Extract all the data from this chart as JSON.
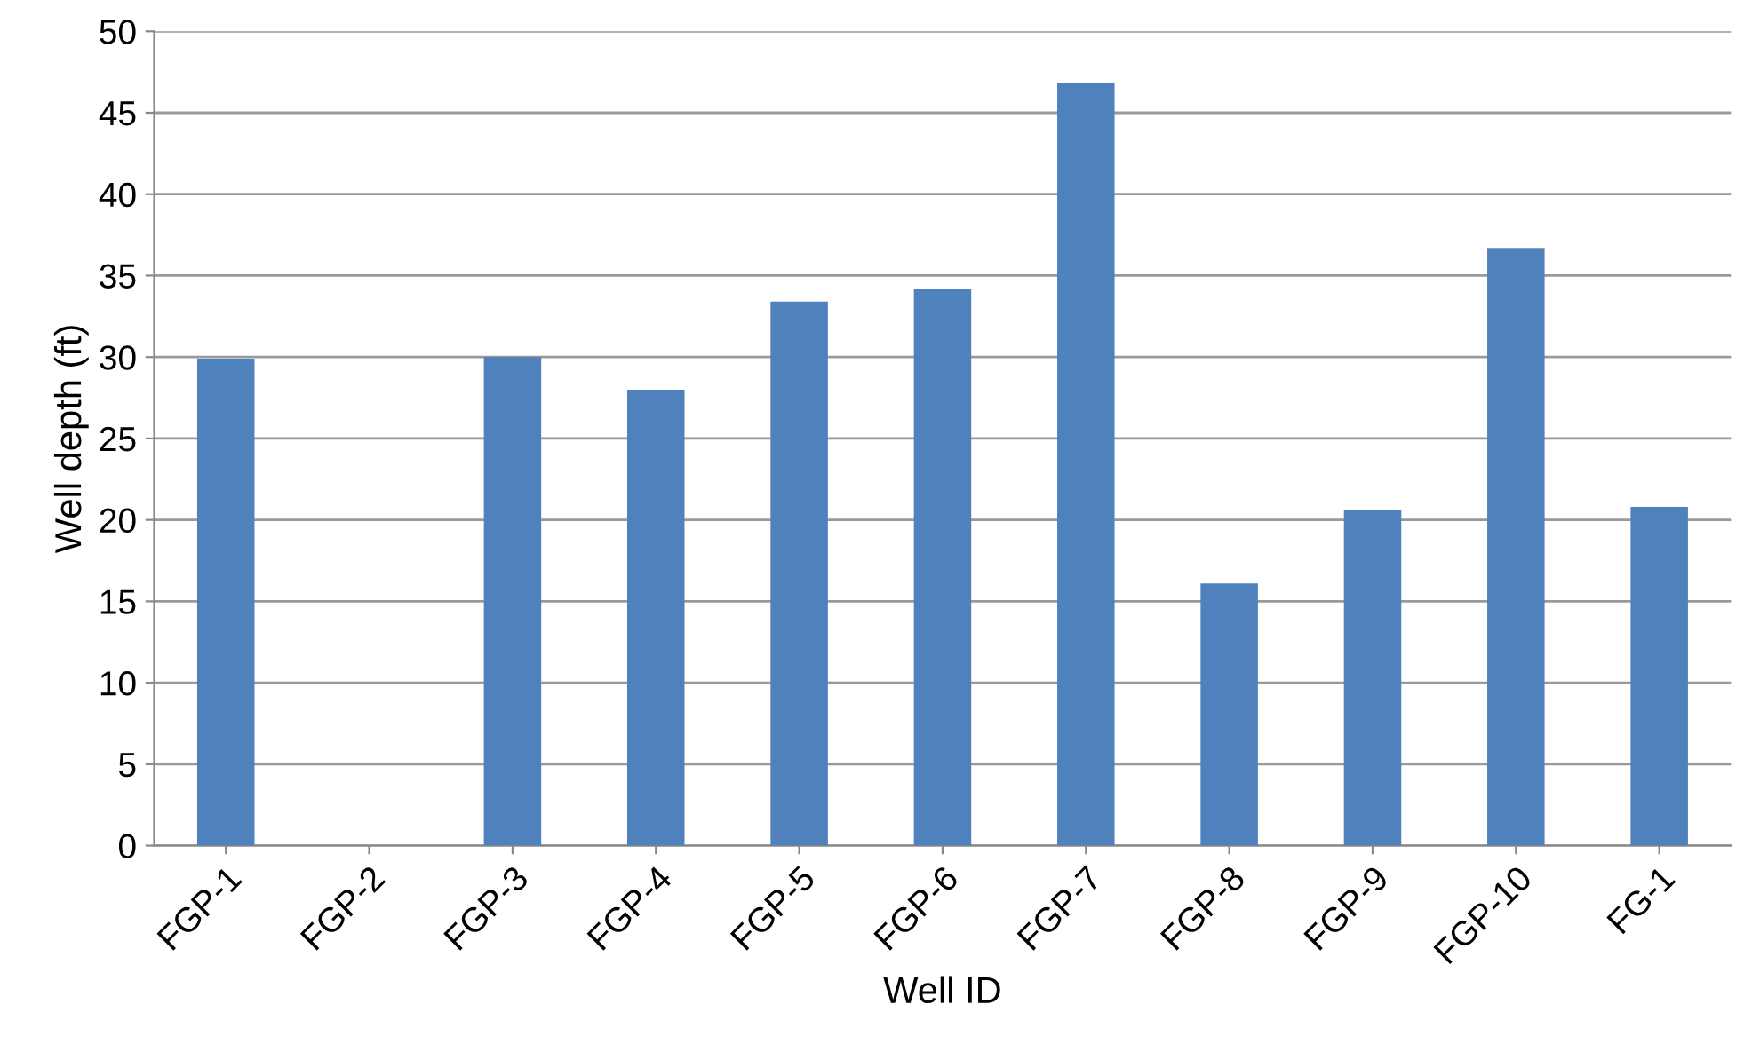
{
  "chart_data": {
    "type": "bar",
    "xlabel": "Well ID",
    "ylabel": "Well depth (ft)",
    "categories": [
      "FGP-1",
      "FGP-2",
      "FGP-3",
      "FGP-4",
      "FGP-5",
      "FGP-6",
      "FGP-7",
      "FGP-8",
      "FGP-9",
      "FGP-10",
      "FG-1"
    ],
    "values": [
      29.9,
      null,
      30.0,
      28.0,
      33.4,
      34.2,
      46.8,
      16.1,
      20.6,
      36.7,
      20.8
    ],
    "color": "#4f81bd",
    "ylim": [
      0,
      50
    ],
    "yticks": [
      0,
      5,
      10,
      15,
      20,
      25,
      30,
      35,
      40,
      45,
      50
    ],
    "grid": "y",
    "legend": false
  }
}
